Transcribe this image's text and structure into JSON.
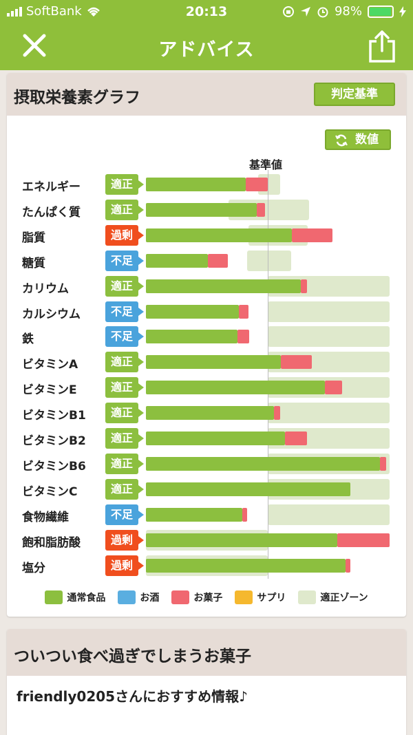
{
  "status_bar": {
    "carrier": "SoftBank",
    "time": "20:13",
    "battery": "98%",
    "battery_level": 0.98
  },
  "nav": {
    "title": "アドバイス",
    "close_icon": "close-icon",
    "share_icon": "share-icon"
  },
  "card": {
    "title": "摂取栄養素グラフ",
    "criteria_button": "判定基準",
    "value_button": "数値",
    "reference_label": "基準値",
    "colors": {
      "regular": "#8cbf3f",
      "alcohol": "#5aaee0",
      "snack": "#f06870",
      "supplement": "#f5b82e",
      "zone": "#dfe9cc",
      "badge_ok": "#8cbf3f",
      "badge_low": "#4aa3dc",
      "badge_high": "#f04e1e"
    },
    "rows": [
      {
        "name": "エネルギー",
        "status": "適正",
        "kind": "ok",
        "regular": 0.82,
        "snack": 0.18,
        "zone": [
          0.92,
          1.1
        ]
      },
      {
        "name": "たんぱく質",
        "status": "適正",
        "kind": "ok",
        "regular": 0.91,
        "snack": 0.07,
        "zone": [
          0.68,
          1.34
        ]
      },
      {
        "name": "脂質",
        "status": "過剰",
        "kind": "high",
        "regular": 1.2,
        "snack": 0.33,
        "zone": [
          0.84,
          1.33
        ]
      },
      {
        "name": "糖質",
        "status": "不足",
        "kind": "low",
        "regular": 0.51,
        "snack": 0.16,
        "zone": [
          0.83,
          1.19
        ]
      },
      {
        "name": "カリウム",
        "status": "適正",
        "kind": "ok",
        "regular": 1.27,
        "snack": 0.05,
        "zone": [
          1.0,
          2.0
        ]
      },
      {
        "name": "カルシウム",
        "status": "不足",
        "kind": "low",
        "regular": 0.76,
        "snack": 0.08,
        "zone": [
          1.0,
          2.0
        ]
      },
      {
        "name": "鉄",
        "status": "不足",
        "kind": "low",
        "regular": 0.75,
        "snack": 0.1,
        "zone": [
          1.0,
          2.0
        ]
      },
      {
        "name": "ビタミンA",
        "status": "適正",
        "kind": "ok",
        "regular": 1.11,
        "snack": 0.25,
        "zone": [
          1.0,
          2.0
        ]
      },
      {
        "name": "ビタミンE",
        "status": "適正",
        "kind": "ok",
        "regular": 1.47,
        "snack": 0.14,
        "zone": [
          1.0,
          2.0
        ]
      },
      {
        "name": "ビタミンB1",
        "status": "適正",
        "kind": "ok",
        "regular": 1.05,
        "snack": 0.05,
        "zone": [
          1.0,
          2.0
        ]
      },
      {
        "name": "ビタミンB2",
        "status": "適正",
        "kind": "ok",
        "regular": 1.14,
        "snack": 0.18,
        "zone": [
          1.0,
          2.0
        ]
      },
      {
        "name": "ビタミンB6",
        "status": "適正",
        "kind": "ok",
        "regular": 1.92,
        "snack": 0.05,
        "zone": [
          1.0,
          2.0
        ]
      },
      {
        "name": "ビタミンC",
        "status": "適正",
        "kind": "ok",
        "regular": 1.68,
        "snack": 0.0,
        "zone": [
          1.0,
          2.0
        ]
      },
      {
        "name": "食物繊維",
        "status": "不足",
        "kind": "low",
        "regular": 0.79,
        "snack": 0.04,
        "zone": [
          1.0,
          2.0
        ]
      },
      {
        "name": "飽和脂肪酸",
        "status": "過剰",
        "kind": "high",
        "regular": 1.57,
        "snack": 0.43,
        "zone": [
          0.0,
          1.0
        ]
      },
      {
        "name": "塩分",
        "status": "過剰",
        "kind": "high",
        "regular": 1.64,
        "snack": 0.04,
        "zone": [
          0.0,
          1.0
        ]
      }
    ],
    "legend": [
      {
        "label": "通常食品",
        "color": "#8cbf3f"
      },
      {
        "label": "お酒",
        "color": "#5aaee0"
      },
      {
        "label": "お菓子",
        "color": "#f06870"
      },
      {
        "label": "サプリ",
        "color": "#f5b82e"
      },
      {
        "label": "適正ゾーン",
        "color": "#dfe9cc"
      }
    ]
  },
  "card2": {
    "title": "ついつい食べ過ぎでしまうお菓子",
    "recommend": "friendly0205さんにおすすめ情報♪"
  }
}
